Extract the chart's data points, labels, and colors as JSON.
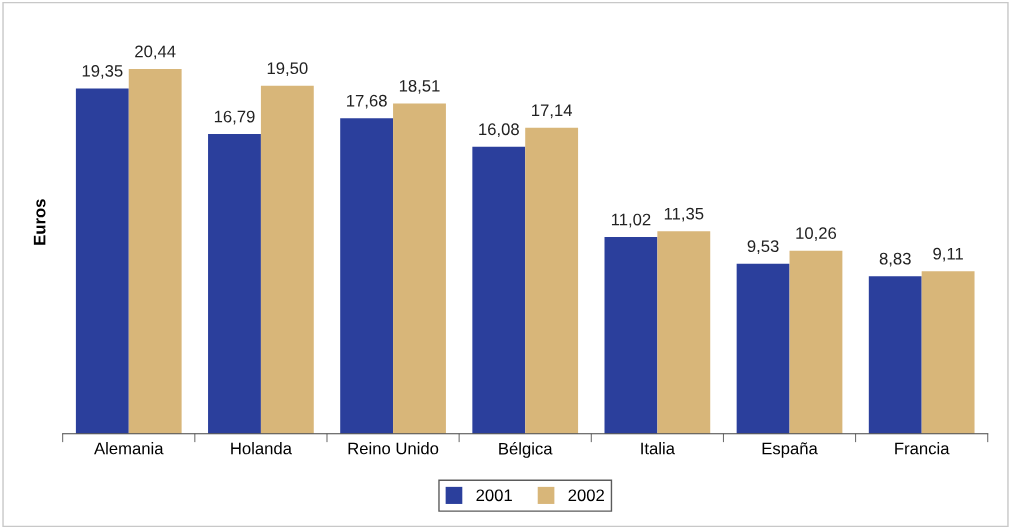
{
  "chart_data": {
    "type": "bar",
    "ylabel": "Euros",
    "categories": [
      "Alemania",
      "Holanda",
      "Reino Unido",
      "Bélgica",
      "Italia",
      "España",
      "Francia"
    ],
    "series": [
      {
        "name": "2001",
        "color": "#2b3f9c",
        "values": [
          19.35,
          16.79,
          17.68,
          16.08,
          11.02,
          9.53,
          8.83
        ],
        "value_labels": [
          "19,35",
          "16,79",
          "17,68",
          "16,08",
          "11,02",
          "9,53",
          "8,83"
        ]
      },
      {
        "name": "2002",
        "color": "#d8b679",
        "values": [
          20.44,
          19.5,
          18.51,
          17.14,
          11.35,
          10.26,
          9.11
        ],
        "value_labels": [
          "20,44",
          "19,50",
          "18,51",
          "17,14",
          "11,35",
          "10,26",
          "9,11"
        ]
      }
    ],
    "legend": "bottom"
  }
}
